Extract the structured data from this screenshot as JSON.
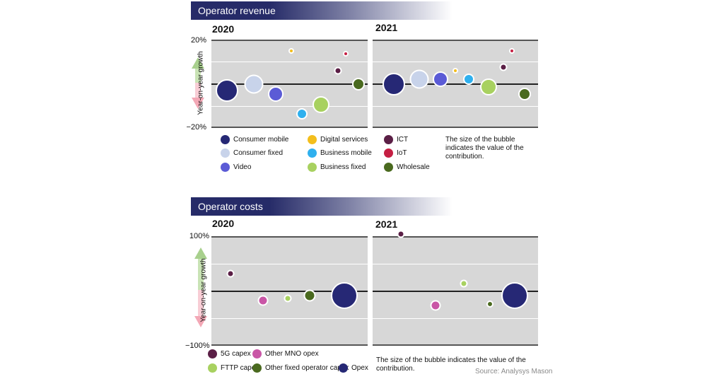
{
  "colors": {
    "consumer_mobile": "#262875",
    "consumer_fixed": "#c8d3ea",
    "video": "#5b5bd6",
    "digital_services": "#f3be1c",
    "business_mobile": "#2fb0ee",
    "business_fixed": "#a8d160",
    "ict": "#5b1f46",
    "iot": "#c51f43",
    "wholesale": "#4a6a1f",
    "5g_capex": "#5b1f46",
    "other_mno_opex": "#c956a6",
    "fttp_capex": "#a8d160",
    "other_fixed_capex": "#4a6a1f",
    "opex": "#262875"
  },
  "revenue": {
    "title": "Operator revenue",
    "year_2020": "2020",
    "year_2021": "2021",
    "y_top": "20%",
    "y_bottom": "−20%",
    "y_axis_label": "Year-on-year growth",
    "legend": [
      {
        "key": "consumer_mobile",
        "label": "Consumer mobile"
      },
      {
        "key": "consumer_fixed",
        "label": "Consumer fixed"
      },
      {
        "key": "video",
        "label": "Video"
      },
      {
        "key": "digital_services",
        "label": "Digital services"
      },
      {
        "key": "business_mobile",
        "label": "Business mobile"
      },
      {
        "key": "business_fixed",
        "label": "Business fixed"
      },
      {
        "key": "ict",
        "label": "ICT"
      },
      {
        "key": "iot",
        "label": "IoT"
      },
      {
        "key": "wholesale",
        "label": "Wholesale"
      }
    ],
    "note": "The size of the bubble indicates the value of the contribution."
  },
  "costs": {
    "title": "Operator costs",
    "year_2020": "2020",
    "year_2021": "2021",
    "y_top": "100%",
    "y_bottom": "−100%",
    "y_axis_label": "Year-on-year growth",
    "legend": [
      {
        "key": "5g_capex",
        "label": "5G capex"
      },
      {
        "key": "other_mno_opex",
        "label": "Other MNO opex"
      },
      {
        "key": "fttp_capex",
        "label": "FTTP capex"
      },
      {
        "key": "other_fixed_capex",
        "label": "Other fixed operator capex"
      },
      {
        "key": "opex",
        "label": "Opex"
      }
    ],
    "note": "The size of the bubble indicates the value of the contribution.",
    "source": "Source: Analysys Mason"
  },
  "chart_data": [
    {
      "type": "scatter",
      "title": "Operator revenue",
      "subtitle": "2020",
      "ylabel": "Year-on-year growth",
      "ylim": [
        -20,
        20
      ],
      "grid": true,
      "points": [
        {
          "name": "Consumer mobile",
          "y": -3,
          "size": 1.0
        },
        {
          "name": "Consumer fixed",
          "y": 0,
          "size": 0.85
        },
        {
          "name": "Video",
          "y": -4.5,
          "size": 0.7
        },
        {
          "name": "Digital services",
          "y": 15,
          "size": 0.2
        },
        {
          "name": "Business mobile",
          "y": -13.5,
          "size": 0.5
        },
        {
          "name": "Business fixed",
          "y": -9.5,
          "size": 0.75
        },
        {
          "name": "ICT",
          "y": 6,
          "size": 0.35
        },
        {
          "name": "IoT",
          "y": 13.5,
          "size": 0.12
        },
        {
          "name": "Wholesale",
          "y": 0,
          "size": 0.55
        }
      ]
    },
    {
      "type": "scatter",
      "title": "Operator revenue",
      "subtitle": "2021",
      "ylabel": "Year-on-year growth",
      "ylim": [
        -20,
        20
      ],
      "grid": true,
      "points": [
        {
          "name": "Consumer mobile",
          "y": 0,
          "size": 1.0
        },
        {
          "name": "Consumer fixed",
          "y": 2,
          "size": 0.85
        },
        {
          "name": "Video",
          "y": 2,
          "size": 0.7
        },
        {
          "name": "Digital services",
          "y": 6,
          "size": 0.2
        },
        {
          "name": "Business mobile",
          "y": 2,
          "size": 0.5
        },
        {
          "name": "Business fixed",
          "y": -1.5,
          "size": 0.75
        },
        {
          "name": "ICT",
          "y": 7.5,
          "size": 0.35
        },
        {
          "name": "IoT",
          "y": 15,
          "size": 0.12
        },
        {
          "name": "Wholesale",
          "y": -4.5,
          "size": 0.55
        }
      ]
    },
    {
      "type": "scatter",
      "title": "Operator costs",
      "subtitle": "2020",
      "ylabel": "Year-on-year growth",
      "ylim": [
        -100,
        100
      ],
      "grid": true,
      "points": [
        {
          "name": "5G capex",
          "y": 32,
          "size": 0.3
        },
        {
          "name": "Other MNO opex",
          "y": -17,
          "size": 0.4
        },
        {
          "name": "FTTP capex",
          "y": -13,
          "size": 0.3
        },
        {
          "name": "Other fixed operator capex",
          "y": -9,
          "size": 0.45
        },
        {
          "name": "Opex",
          "y": -9,
          "size": 1.0
        }
      ]
    },
    {
      "type": "scatter",
      "title": "Operator costs",
      "subtitle": "2021",
      "ylabel": "Year-on-year growth",
      "ylim": [
        -100,
        100
      ],
      "grid": true,
      "points": [
        {
          "name": "5G capex",
          "y": 104,
          "size": 0.3
        },
        {
          "name": "Other MNO opex",
          "y": -27,
          "size": 0.4
        },
        {
          "name": "FTTP capex",
          "y": 13,
          "size": 0.3
        },
        {
          "name": "Other fixed operator capex",
          "y": -24,
          "size": 0.25
        },
        {
          "name": "Opex",
          "y": -9,
          "size": 1.0
        }
      ]
    }
  ]
}
